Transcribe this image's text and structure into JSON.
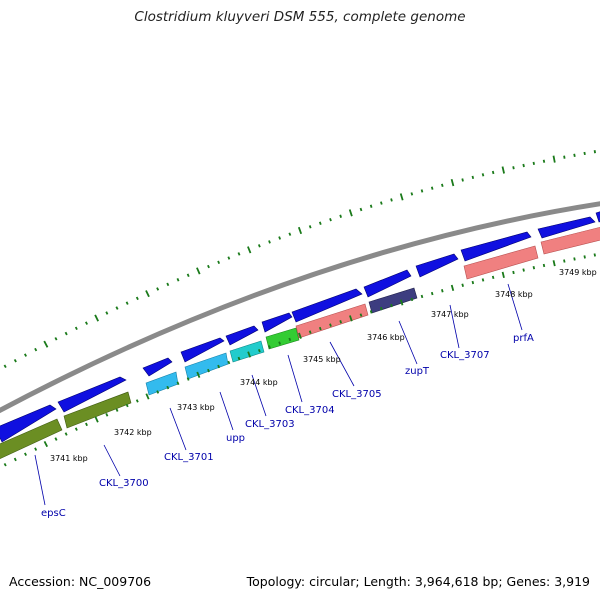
{
  "title": "Clostridium kluyveri DSM 555, complete genome",
  "footer": {
    "accession": "Accession: NC_009706",
    "summary": "Topology: circular; Length: 3,964,618 bp; Genes: 3,919"
  },
  "colors": {
    "backbone": "#8a8a8a",
    "forward_gene": "#1010e0",
    "tick": "#1a7a1a",
    "gene_label": "#0000aa",
    "olive": "#6b8e23",
    "sky": "#33bbee",
    "cyan": "#22cccc",
    "green": "#33cc33",
    "salmon": "#f08080",
    "indigo": "#3d3d80"
  },
  "kbp_labels": [
    {
      "text": "3741 kbp"
    },
    {
      "text": "3742 kbp"
    },
    {
      "text": "3743 kbp"
    },
    {
      "text": "3744 kbp"
    },
    {
      "text": "3745 kbp"
    },
    {
      "text": "3746 kbp"
    },
    {
      "text": "3747 kbp"
    },
    {
      "text": "3748 kbp"
    },
    {
      "text": "3749 kbp"
    }
  ],
  "gene_labels": [
    {
      "text": "epsC"
    },
    {
      "text": "CKL_3700"
    },
    {
      "text": "CKL_3701"
    },
    {
      "text": "upp"
    },
    {
      "text": "CKL_3703"
    },
    {
      "text": "CKL_3704"
    },
    {
      "text": "CKL_3705"
    },
    {
      "text": "zupT"
    },
    {
      "text": "CKL_3707"
    },
    {
      "text": "prfA"
    }
  ]
}
